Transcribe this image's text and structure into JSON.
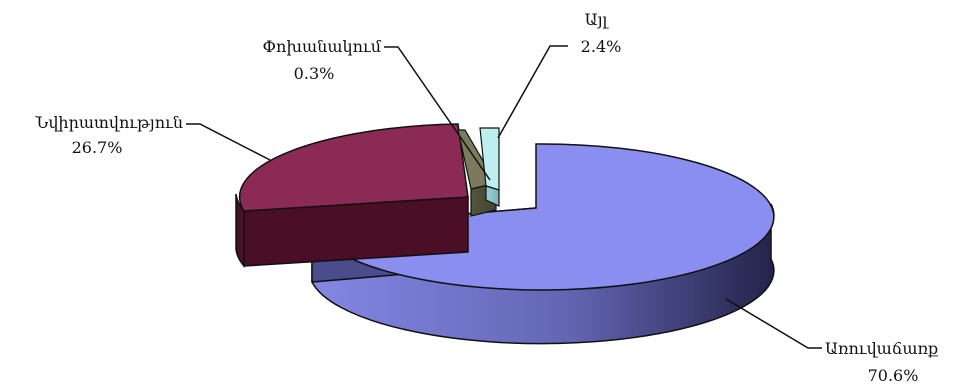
{
  "chart_data": {
    "type": "pie",
    "three_d": true,
    "exploded": true,
    "labels_outside_with_leader_lines": true,
    "slices": [
      {
        "label": "Առուվաճառք",
        "value": 70.6,
        "percent_label": "70.6%",
        "color": "#8a8ef0"
      },
      {
        "label": "Նվիրատվություն",
        "value": 26.7,
        "percent_label": "26.7%",
        "color": "#8a2a55"
      },
      {
        "label": "Փոխանակում",
        "value": 0.3,
        "percent_label": "0.3%",
        "color": "#7b7a5c"
      },
      {
        "label": "Այլ",
        "value": 2.4,
        "percent_label": "2.4%",
        "color": "#bdeef0"
      }
    ]
  }
}
